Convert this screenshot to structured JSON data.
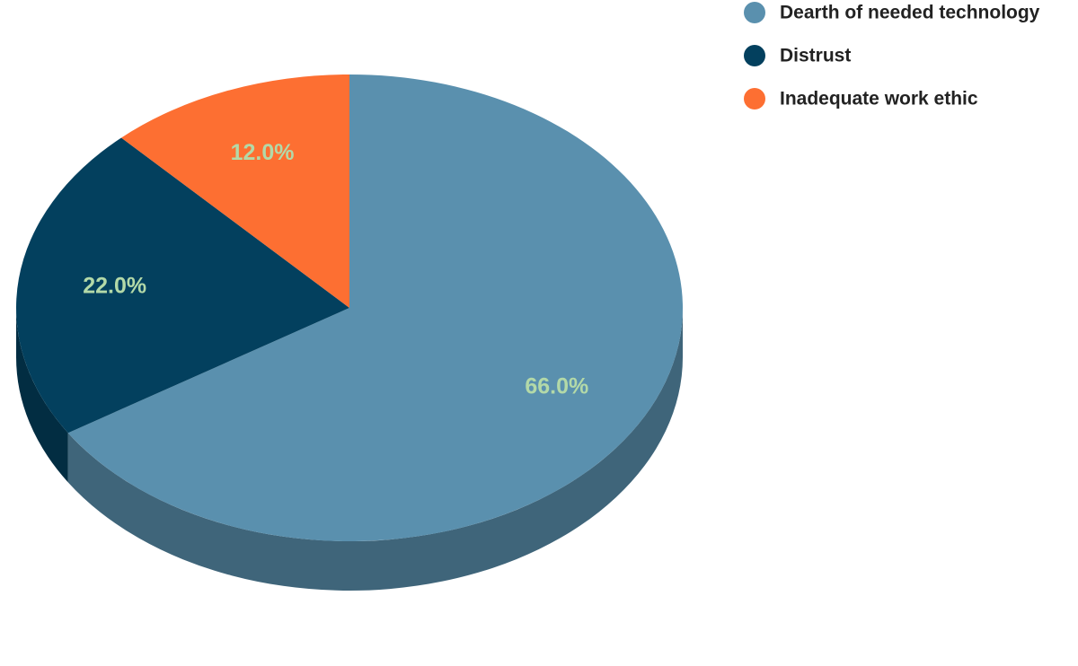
{
  "chart_data": {
    "type": "pie",
    "categories": [
      "Dearth of needed technology",
      "Distrust",
      "Inadequate work ethic"
    ],
    "values": [
      66,
      22,
      12
    ],
    "value_labels": [
      "66.0%",
      "22.0%",
      "12.0%"
    ],
    "colors": [
      "#5a90ae",
      "#03405e",
      "#fd6f32"
    ],
    "legend": "upper right"
  }
}
